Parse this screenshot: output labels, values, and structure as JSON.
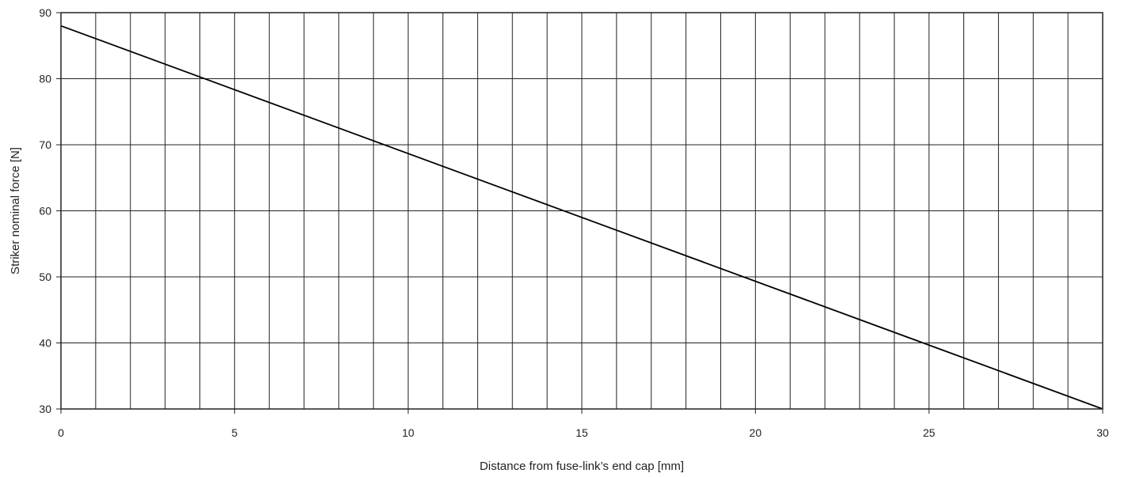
{
  "chart_data": {
    "type": "line",
    "title": "",
    "xlabel": "Distance from fuse-link’s end cap [mm]",
    "ylabel": "Striker nominal force [N]",
    "xlim": [
      0,
      30
    ],
    "ylim": [
      30,
      90
    ],
    "x_ticks": [
      0,
      5,
      10,
      15,
      20,
      25,
      30
    ],
    "y_ticks": [
      30,
      40,
      50,
      60,
      70,
      80,
      90
    ],
    "x_minor_step": 1,
    "grid": true,
    "legend": "none",
    "series": [
      {
        "color": "#000000",
        "x": [
          0,
          30
        ],
        "y": [
          88,
          30
        ]
      }
    ]
  }
}
